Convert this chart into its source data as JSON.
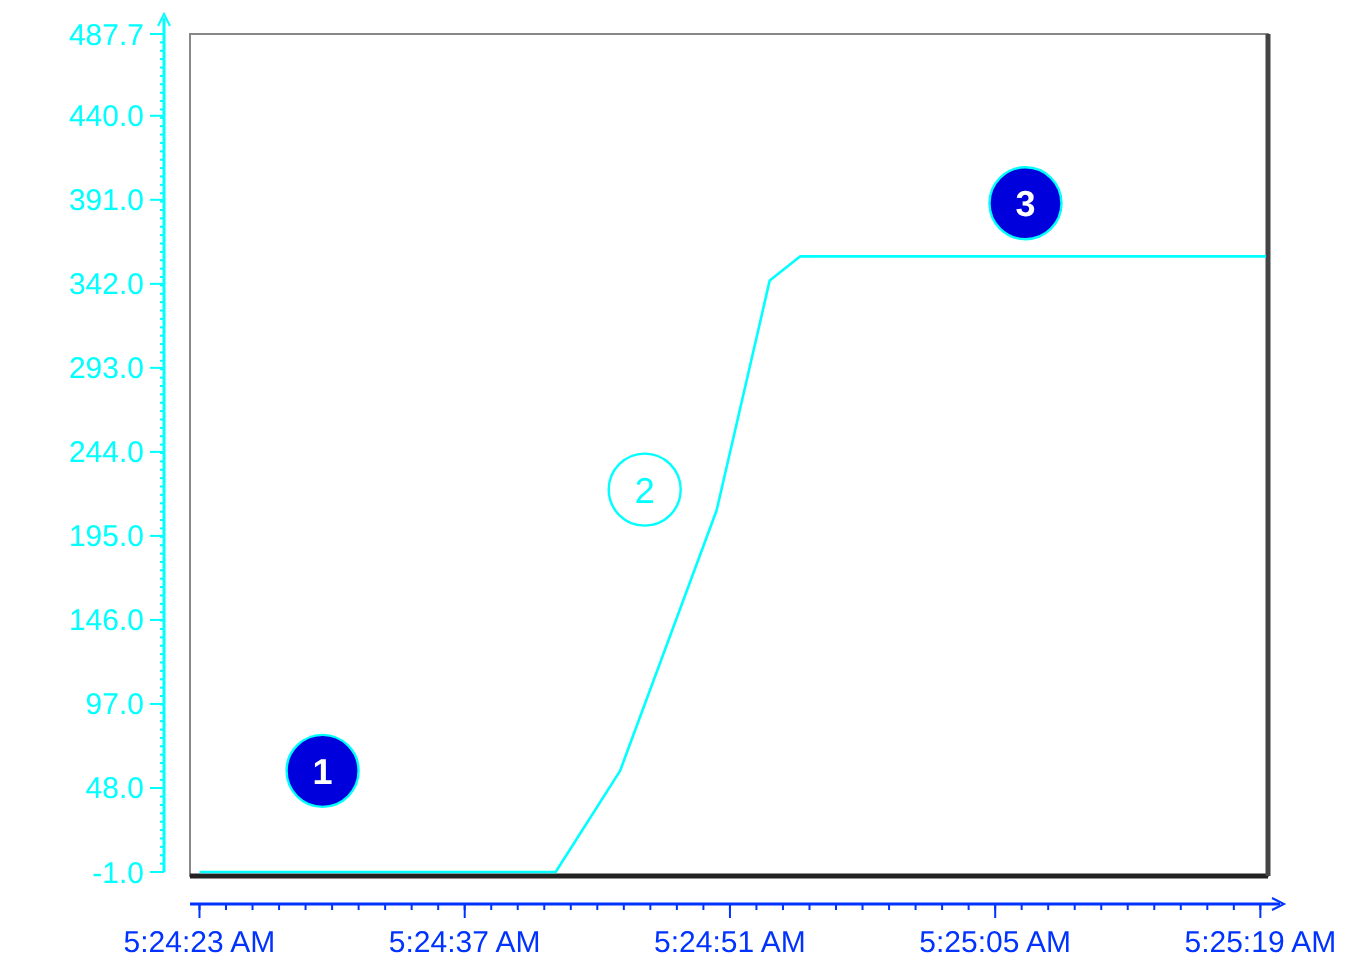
{
  "chart_data": {
    "type": "line",
    "x": [
      5.406389,
      5.411611,
      5.412556,
      5.413972,
      5.41475,
      5.415194,
      5.416667,
      5.419444,
      5.422028
    ],
    "series": [
      {
        "color": "#00ffff",
        "values": [
          -1,
          -1,
          58,
          210,
          344,
          358,
          358,
          358,
          358
        ]
      }
    ],
    "xlim": [
      5.40625,
      5.422056
    ],
    "ylim": [
      -1,
      487.7
    ],
    "xticks": [
      {
        "value": 5.406389,
        "label": "5:24:23 AM"
      },
      {
        "value": 5.410278,
        "label": "5:24:37 AM"
      },
      {
        "value": 5.414167,
        "label": "5:24:51 AM"
      },
      {
        "value": 5.418056,
        "label": "5:25:05 AM"
      },
      {
        "value": 5.421944,
        "label": "5:25:19 AM"
      }
    ],
    "yticks": [
      {
        "value": -1,
        "label": "-1.0"
      },
      {
        "value": 48,
        "label": "48.0"
      },
      {
        "value": 97,
        "label": "97.0"
      },
      {
        "value": 146,
        "label": "146.0"
      },
      {
        "value": 195,
        "label": "195.0"
      },
      {
        "value": 244,
        "label": "244.0"
      },
      {
        "value": 293,
        "label": "293.0"
      },
      {
        "value": 342,
        "label": "342.0"
      },
      {
        "value": 391,
        "label": "391.0"
      },
      {
        "value": 440,
        "label": "440.0"
      },
      {
        "value": 487.7,
        "label": "487.7"
      }
    ],
    "grid": false,
    "marker": "none",
    "line_style": "solid",
    "annotations": [
      {
        "text": "1",
        "x": 5.408194,
        "y": 58
      },
      {
        "text": "2",
        "x": 5.412917,
        "y": 222
      },
      {
        "text": "3",
        "x": 5.4185,
        "y": 389
      }
    ]
  }
}
